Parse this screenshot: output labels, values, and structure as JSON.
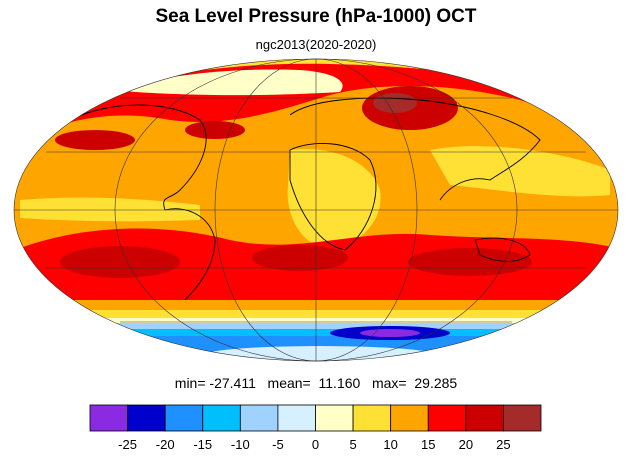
{
  "title": "Sea Level Pressure (hPa-1000) OCT",
  "subtitle": "ngc2013(2020-2020)",
  "stats": {
    "min_label": "min=",
    "min": "-27.411",
    "mean_label": "mean=",
    "mean": "11.160",
    "max_label": "max=",
    "max": "29.285"
  },
  "colorbar": {
    "colors": [
      "#8a2be2",
      "#0000cd",
      "#1e90ff",
      "#00bfff",
      "#a0d2ff",
      "#d6f0ff",
      "#ffffc8",
      "#ffe135",
      "#ffa500",
      "#ff0000",
      "#cd0000",
      "#a52a2a"
    ],
    "ticks": [
      "-25",
      "-20",
      "-15",
      "-10",
      "-5",
      "0",
      "5",
      "10",
      "15",
      "20",
      "25"
    ]
  },
  "map": {
    "projection": "mollweide",
    "field_colors": {
      "high": "#cd0000",
      "red": "#ff0000",
      "orange": "#ffa500",
      "yellow": "#ffe135",
      "pale": "#ffffc8",
      "lightblue": "#a0d2ff",
      "cyan": "#00bfff",
      "blue": "#1e90ff",
      "darkblue": "#0000cd",
      "purple": "#8a2be2"
    }
  }
}
